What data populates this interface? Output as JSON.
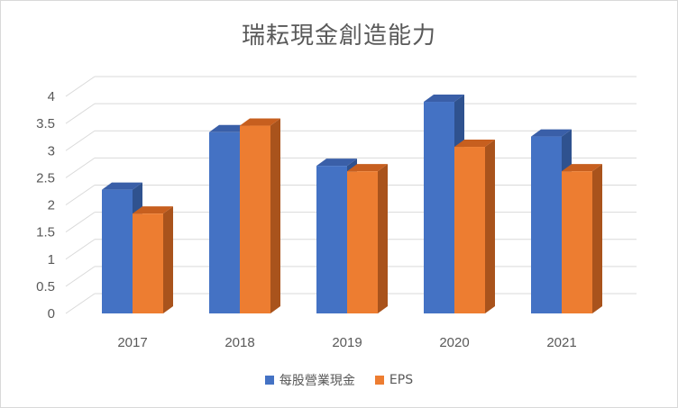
{
  "chart_data": {
    "type": "bar",
    "title": "瑞耘現金創造能力",
    "categories": [
      "2017",
      "2018",
      "2019",
      "2020",
      "2021"
    ],
    "series": [
      {
        "name": "每股營業現金",
        "values": [
          2.28,
          3.34,
          2.72,
          3.9,
          3.26
        ],
        "color": "#4472C4",
        "side_color": "#2F528F",
        "top_color": "#3A5FA8"
      },
      {
        "name": "EPS",
        "values": [
          1.84,
          3.46,
          2.62,
          3.07,
          2.62
        ],
        "color": "#ED7D31",
        "side_color": "#A9531C",
        "top_color": "#C75F1F"
      }
    ],
    "yticks": [
      "0",
      "0.5",
      "1",
      "1.5",
      "2",
      "2.5",
      "3",
      "3.5",
      "4"
    ],
    "ylim": [
      0,
      4
    ],
    "grid": true,
    "legend_position": "bottom"
  }
}
